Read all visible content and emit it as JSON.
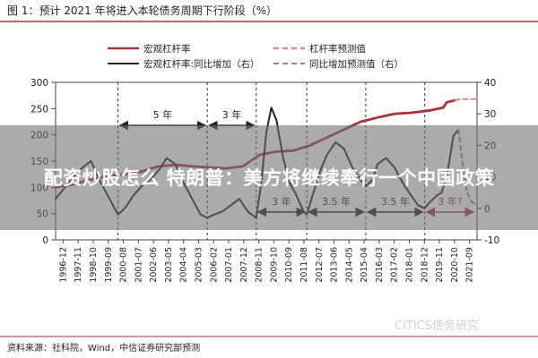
{
  "header": {
    "title": "图 1：预计 2021 年将进入本轮债务周期下行阶段（%）"
  },
  "overlay": {
    "headline": "配资炒股怎么 特朗普：美方将继续奉行一个中国政策"
  },
  "legend": {
    "items": [
      {
        "label": "宏观杠杆率",
        "color": "#a7333c",
        "style": "solid"
      },
      {
        "label": "杠杆率预测值",
        "color": "#d98a91",
        "style": "dashed"
      },
      {
        "label": "宏观杠杆率:同比增加（右）",
        "color": "#222222",
        "style": "solid"
      },
      {
        "label": "同比增加预测值（右）",
        "color": "#888888",
        "style": "dashed"
      }
    ]
  },
  "annotations": [
    {
      "text": "5 年",
      "color": "#222222"
    },
    {
      "text": "3 年",
      "color": "#222222"
    },
    {
      "text": "3 年",
      "color": "#222222"
    },
    {
      "text": "3.5 年",
      "color": "#222222"
    },
    {
      "text": "3.5 年",
      "color": "#222222"
    },
    {
      "text": "3 年?",
      "color": "#a7333c"
    }
  ],
  "source": {
    "text": "资料来源：社科院，Wind，中信证券研究部预测"
  },
  "watermark": {
    "text": "CITICS债务研究"
  },
  "chart_data": {
    "type": "line",
    "x_ticks": [
      "1996-12",
      "1997-11",
      "1998-10",
      "1999-09",
      "2000-08",
      "2001-07",
      "2002-06",
      "2003-05",
      "2004-04",
      "2005-03",
      "2006-02",
      "2007-01",
      "2007-12",
      "2008-11",
      "2009-10",
      "2010-09",
      "2011-08",
      "2012-07",
      "2013-06",
      "2014-05",
      "2015-04",
      "2016-03",
      "2017-02",
      "2018-01",
      "2018-12",
      "2019-11",
      "2020-10",
      "2021-09"
    ],
    "x_range": [
      1996.9,
      2021.9
    ],
    "y_left_ticks": [
      0,
      50,
      100,
      150,
      200,
      250,
      300
    ],
    "y_left_range": [
      0,
      300
    ],
    "y_right_ticks": [
      -10,
      0,
      10,
      20,
      30,
      40
    ],
    "y_right_range": [
      -10,
      40
    ],
    "grid": false,
    "legend_position": "top",
    "vertical_reference_lines": [
      2000.6,
      2005.9,
      2008.8,
      2011.8,
      2015.3,
      2018.8
    ],
    "series": [
      {
        "name": "宏观杠杆率",
        "axis": "left",
        "color": "#a7333c",
        "style": "solid",
        "points": [
          [
            1996.9,
            100
          ],
          [
            1998,
            106
          ],
          [
            1999,
            115
          ],
          [
            2000,
            122
          ],
          [
            2001,
            125
          ],
          [
            2002,
            130
          ],
          [
            2003,
            140
          ],
          [
            2004,
            143
          ],
          [
            2005,
            140
          ],
          [
            2006,
            138
          ],
          [
            2007,
            136
          ],
          [
            2008,
            140
          ],
          [
            2009,
            162
          ],
          [
            2010,
            168
          ],
          [
            2011,
            170
          ],
          [
            2012,
            180
          ],
          [
            2013,
            195
          ],
          [
            2014,
            210
          ],
          [
            2015,
            225
          ],
          [
            2016,
            233
          ],
          [
            2017,
            240
          ],
          [
            2018,
            242
          ],
          [
            2019,
            246
          ],
          [
            2019.9,
            252
          ],
          [
            2020.1,
            262
          ],
          [
            2020.6,
            266
          ]
        ]
      },
      {
        "name": "杠杆率预测值",
        "axis": "left",
        "color": "#d98a91",
        "style": "dashed",
        "points": [
          [
            2020.6,
            266
          ],
          [
            2021,
            268
          ],
          [
            2021.5,
            268
          ],
          [
            2021.9,
            268
          ]
        ]
      },
      {
        "name": "宏观杠杆率:同比增加（右）",
        "axis": "right",
        "color": "#222222",
        "style": "solid",
        "points": [
          [
            1996.9,
            3
          ],
          [
            1997.5,
            7
          ],
          [
            1998,
            10
          ],
          [
            1998.5,
            13
          ],
          [
            1999,
            15
          ],
          [
            1999.5,
            9
          ],
          [
            2000,
            4
          ],
          [
            2000.6,
            -2
          ],
          [
            2001,
            0
          ],
          [
            2001.5,
            4
          ],
          [
            2002,
            7
          ],
          [
            2002.5,
            9
          ],
          [
            2003,
            12
          ],
          [
            2003.5,
            16
          ],
          [
            2004,
            14
          ],
          [
            2004.5,
            8
          ],
          [
            2005,
            3
          ],
          [
            2005.5,
            -2
          ],
          [
            2005.9,
            -3
          ],
          [
            2006.3,
            -2
          ],
          [
            2006.8,
            -1
          ],
          [
            2007.3,
            1
          ],
          [
            2007.8,
            3
          ],
          [
            2008.3,
            -1
          ],
          [
            2008.8,
            -3
          ],
          [
            2009.1,
            8
          ],
          [
            2009.4,
            24
          ],
          [
            2009.7,
            32
          ],
          [
            2010,
            28
          ],
          [
            2010.4,
            16
          ],
          [
            2010.8,
            8
          ],
          [
            2011.2,
            4
          ],
          [
            2011.6,
            -1
          ],
          [
            2011.8,
            -2
          ],
          [
            2012.2,
            5
          ],
          [
            2012.6,
            12
          ],
          [
            2013,
            17
          ],
          [
            2013.5,
            21
          ],
          [
            2014,
            19
          ],
          [
            2014.5,
            13
          ],
          [
            2015,
            9
          ],
          [
            2015.3,
            7
          ],
          [
            2015.7,
            9
          ],
          [
            2016,
            14
          ],
          [
            2016.5,
            16
          ],
          [
            2017,
            13
          ],
          [
            2017.5,
            8
          ],
          [
            2018,
            4
          ],
          [
            2018.4,
            1
          ],
          [
            2018.8,
            0
          ],
          [
            2019.1,
            2
          ],
          [
            2019.5,
            4
          ],
          [
            2019.8,
            5
          ],
          [
            2020.1,
            10
          ],
          [
            2020.5,
            23
          ],
          [
            2020.8,
            25
          ]
        ]
      },
      {
        "name": "同比增加预测值（右）",
        "axis": "right",
        "color": "#888888",
        "style": "dashed",
        "points": [
          [
            2020.8,
            25
          ],
          [
            2021,
            16
          ],
          [
            2021.3,
            5
          ],
          [
            2021.6,
            2
          ],
          [
            2021.9,
            1
          ]
        ]
      }
    ],
    "period_brackets": [
      {
        "x1": 2000.6,
        "x2": 2005.9,
        "y_left": 218,
        "label_index": 0
      },
      {
        "x1": 2005.9,
        "x2": 2008.8,
        "y_left": 218,
        "label_index": 1
      },
      {
        "x1": 2008.8,
        "x2": 2011.8,
        "y_left": 53,
        "label_index": 2
      },
      {
        "x1": 2011.8,
        "x2": 2015.3,
        "y_left": 53,
        "label_index": 3
      },
      {
        "x1": 2015.3,
        "x2": 2018.8,
        "y_left": 53,
        "label_index": 4
      },
      {
        "x1": 2018.8,
        "x2": 2021.8,
        "y_left": 53,
        "label_index": 5
      }
    ]
  }
}
